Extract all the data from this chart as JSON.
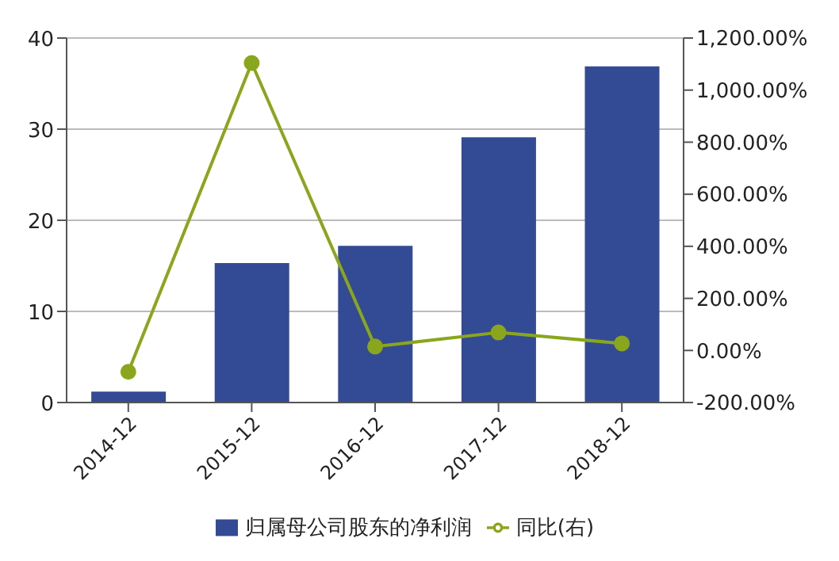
{
  "chart_data": {
    "type": "bar",
    "categories": [
      "2014-12",
      "2015-12",
      "2016-12",
      "2017-12",
      "2018-12"
    ],
    "series": [
      {
        "name": "归属母公司股东的净利润",
        "color": "#334a94",
        "values": [
          1.2,
          15.3,
          17.2,
          29.1,
          36.9
        ]
      },
      {
        "name": "同比(右)",
        "type": "line",
        "axis": "y2",
        "color": "#8aa61c",
        "values": [
          -82,
          1104,
          15,
          69,
          27
        ]
      }
    ],
    "ylim": [
      0,
      40
    ],
    "yticks": [
      0,
      10,
      20,
      30,
      40
    ],
    "y2lim": [
      -200,
      1200
    ],
    "y2ticks": [
      {
        "value": -200,
        "label": "-200.00%"
      },
      {
        "value": 0,
        "label": "0.00%"
      },
      {
        "value": 200,
        "label": "200.00%"
      },
      {
        "value": 400,
        "label": "400.00%"
      },
      {
        "value": 600,
        "label": "600.00%"
      },
      {
        "value": 800,
        "label": "800.00%"
      },
      {
        "value": 1000,
        "label": "1,000.00%"
      },
      {
        "value": 1200,
        "label": "1,200.00%"
      }
    ],
    "grid": "y",
    "legend": "bottom",
    "marker": "circle",
    "line_style": "solid"
  }
}
